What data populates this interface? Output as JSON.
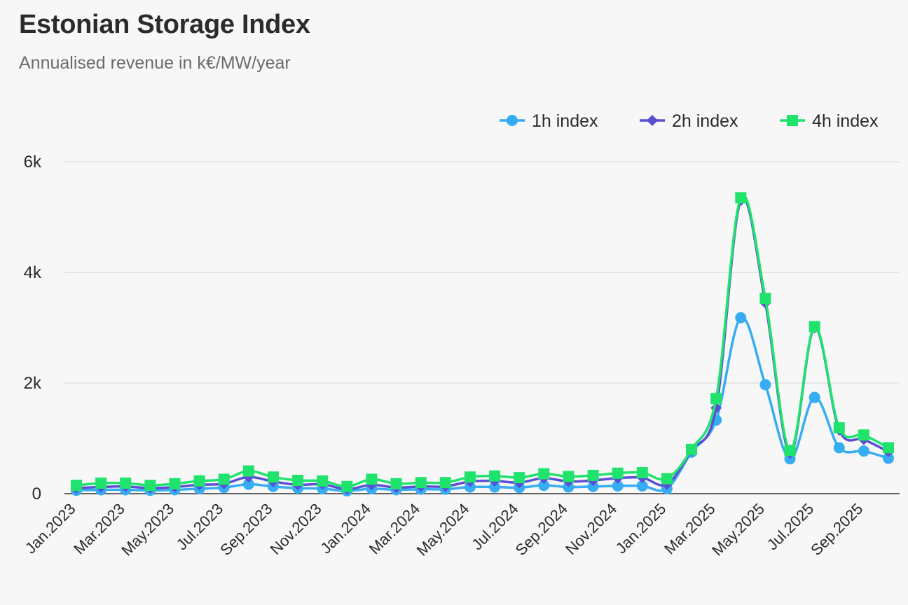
{
  "chart_data": {
    "type": "line",
    "title": "Estonian Storage Index",
    "subtitle": "Annualised revenue in k€/MW/year",
    "xlabel": "",
    "ylabel": "",
    "ylim": [
      0,
      6000
    ],
    "y_ticks": [
      0,
      2000,
      4000,
      6000
    ],
    "y_tick_labels": [
      "0",
      "2k",
      "4k",
      "6k"
    ],
    "grid": true,
    "legend_position": "top-right",
    "categories": [
      "Jan.2023",
      "Feb.2023",
      "Mar.2023",
      "Apr.2023",
      "May.2023",
      "Jun.2023",
      "Jul.2023",
      "Aug.2023",
      "Sep.2023",
      "Oct.2023",
      "Nov.2023",
      "Dec.2023",
      "Jan.2024",
      "Feb.2024",
      "Mar.2024",
      "Apr.2024",
      "May.2024",
      "Jun.2024",
      "Jul.2024",
      "Aug.2024",
      "Sep.2024",
      "Oct.2024",
      "Nov.2024",
      "Dec.2024",
      "Jan.2025",
      "Feb.2025",
      "Mar.2025",
      "Apr.2025",
      "May.2025",
      "Jun.2025",
      "Jul.2025",
      "Aug.2025",
      "Sep.2025",
      "Oct.2025"
    ],
    "x_tick_labels": [
      "Jan.2023",
      "Mar.2023",
      "May.2023",
      "Jul.2023",
      "Sep.2023",
      "Nov.2023",
      "Jan.2024",
      "Mar.2024",
      "May.2024",
      "Jul.2024",
      "Sep.2024",
      "Nov.2024",
      "Jan.2025",
      "Mar.2025",
      "May.2025",
      "Jul.2025",
      "Sep.2025"
    ],
    "series": [
      {
        "name": "1h index",
        "color": "#36adf2",
        "marker": "circle",
        "values": [
          60,
          70,
          70,
          60,
          70,
          90,
          110,
          170,
          130,
          100,
          90,
          50,
          90,
          70,
          80,
          80,
          120,
          120,
          110,
          150,
          120,
          130,
          140,
          140,
          90,
          750,
          1330,
          3180,
          1970,
          630,
          1740,
          830,
          770,
          640
        ]
      },
      {
        "name": "2h index",
        "color": "#5b4fd6",
        "marker": "diamond",
        "values": [
          100,
          120,
          130,
          100,
          120,
          160,
          180,
          300,
          220,
          160,
          170,
          80,
          160,
          110,
          130,
          130,
          220,
          230,
          200,
          280,
          220,
          240,
          280,
          290,
          170,
          780,
          1550,
          5300,
          3450,
          730,
          3000,
          1150,
          980,
          760
        ]
      },
      {
        "name": "4h index",
        "color": "#1fe36d",
        "marker": "square",
        "values": [
          150,
          190,
          190,
          150,
          180,
          230,
          260,
          410,
          300,
          240,
          230,
          130,
          260,
          180,
          200,
          200,
          300,
          320,
          290,
          360,
          310,
          330,
          370,
          380,
          270,
          800,
          1720,
          5350,
          3530,
          780,
          3020,
          1190,
          1060,
          830
        ]
      }
    ]
  }
}
